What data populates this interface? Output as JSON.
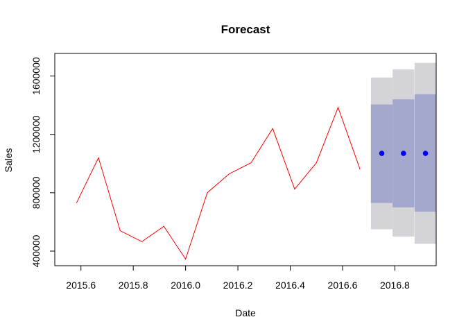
{
  "chart_data": {
    "type": "line",
    "title": "Forecast",
    "xlabel": "Date",
    "ylabel": "Sales",
    "xlim": [
      2015.5,
      2016.958
    ],
    "ylim": [
      300000,
      1755000
    ],
    "x_ticks": [
      2015.6,
      2015.8,
      2016.0,
      2016.2,
      2016.4,
      2016.6,
      2016.8
    ],
    "x_tick_labels": [
      "2015.6",
      "2015.8",
      "2016.0",
      "2016.2",
      "2016.4",
      "2016.6",
      "2016.8"
    ],
    "y_ticks": [
      400000,
      800000,
      1200000,
      1600000
    ],
    "y_tick_labels": [
      "400000",
      "800000",
      "1200000",
      "1600000"
    ],
    "grid": false,
    "series": [
      {
        "color": "#ff0000",
        "x": [
          2015.583,
          2015.667,
          2015.75,
          2015.833,
          2015.917,
          2016.0,
          2016.083,
          2016.167,
          2016.25,
          2016.333,
          2016.417,
          2016.5,
          2016.583,
          2016.667
        ],
        "values": [
          730000,
          1040000,
          540000,
          465000,
          570000,
          345000,
          800000,
          930000,
          1005000,
          1240000,
          825000,
          1005000,
          1385000,
          960000
        ]
      }
    ],
    "forecast": {
      "point_color": "#0000ff",
      "inner_band_color": "#a3a8cc",
      "outer_band_color": "#d3d3d8",
      "x": [
        2016.75,
        2016.833,
        2016.917
      ],
      "mean": [
        1070000,
        1070000,
        1070000
      ],
      "lo80": [
        730000,
        700000,
        670000
      ],
      "hi80": [
        1405000,
        1440000,
        1475000
      ],
      "lo95": [
        550000,
        500000,
        450000
      ],
      "hi95": [
        1590000,
        1645000,
        1690000
      ]
    }
  }
}
